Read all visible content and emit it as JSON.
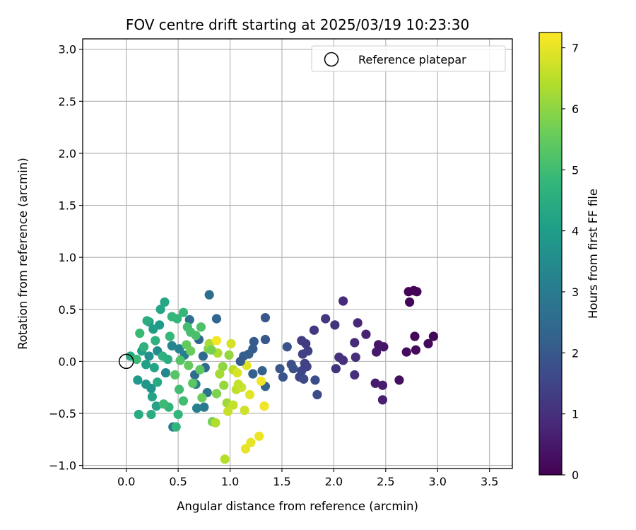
{
  "chart_data": {
    "type": "scatter",
    "title": "FOV centre drift starting at 2025/03/19 10:23:30",
    "xlabel": "Angular distance from reference (arcmin)",
    "ylabel": "Rotation from reference (arcmin)",
    "xlim": [
      -0.42,
      3.72
    ],
    "ylim": [
      -1.03,
      3.1
    ],
    "xticks": [
      0.0,
      0.5,
      1.0,
      1.5,
      2.0,
      2.5,
      3.0,
      3.5
    ],
    "xtick_labels": [
      "0.0",
      "0.5",
      "1.0",
      "1.5",
      "2.0",
      "2.5",
      "3.0",
      "3.5"
    ],
    "yticks": [
      -1.0,
      -0.5,
      0.0,
      0.5,
      1.0,
      1.5,
      2.0,
      2.5,
      3.0
    ],
    "ytick_labels": [
      "−1.0",
      "−0.5",
      "0.0",
      "0.5",
      "1.0",
      "1.5",
      "2.0",
      "2.5",
      "3.0"
    ],
    "grid": true,
    "legend": {
      "position": "top-right",
      "entries": [
        "Reference platepar"
      ]
    },
    "reference_point": {
      "x": 0.0,
      "y": 0.0,
      "marker": "open-circle"
    },
    "colorbar": {
      "label": "Hours from first FF file",
      "colormap": "viridis",
      "range": [
        0,
        7.25
      ],
      "ticks": [
        0,
        1,
        2,
        3,
        4,
        5,
        6,
        7
      ],
      "tick_labels": [
        "0",
        "1",
        "2",
        "3",
        "4",
        "5",
        "6",
        "7"
      ],
      "stops": [
        "#440154",
        "#482878",
        "#3e4a89",
        "#31688e",
        "#26828e",
        "#1f9e89",
        "#35b779",
        "#6ece58",
        "#b5de2b",
        "#fde725"
      ]
    },
    "series": [
      {
        "points": [
          {
            "x": 2.72,
            "y": 0.67,
            "c": 0.05
          },
          {
            "x": 2.77,
            "y": 0.68,
            "c": 0.05
          },
          {
            "x": 2.8,
            "y": 0.67,
            "c": 0.08
          },
          {
            "x": 2.73,
            "y": 0.57,
            "c": 0.1
          },
          {
            "x": 2.96,
            "y": 0.24,
            "c": 0.12
          },
          {
            "x": 2.78,
            "y": 0.24,
            "c": 0.14
          },
          {
            "x": 2.91,
            "y": 0.17,
            "c": 0.16
          },
          {
            "x": 2.79,
            "y": 0.11,
            "c": 0.18
          },
          {
            "x": 2.7,
            "y": 0.09,
            "c": 0.2
          },
          {
            "x": 2.63,
            "y": -0.18,
            "c": 0.3
          },
          {
            "x": 2.48,
            "y": 0.14,
            "c": 0.4
          },
          {
            "x": 2.43,
            "y": 0.16,
            "c": 0.45
          },
          {
            "x": 2.41,
            "y": 0.09,
            "c": 0.5
          },
          {
            "x": 2.4,
            "y": -0.21,
            "c": 0.55
          },
          {
            "x": 2.47,
            "y": -0.23,
            "c": 0.6
          },
          {
            "x": 2.47,
            "y": -0.37,
            "c": 0.65
          },
          {
            "x": 2.31,
            "y": 0.26,
            "c": 0.7
          },
          {
            "x": 2.23,
            "y": 0.37,
            "c": 0.8
          },
          {
            "x": 2.09,
            "y": 0.58,
            "c": 0.85
          },
          {
            "x": 2.2,
            "y": 0.18,
            "c": 0.9
          },
          {
            "x": 2.21,
            "y": 0.04,
            "c": 0.95
          },
          {
            "x": 2.2,
            "y": -0.13,
            "c": 1.0
          },
          {
            "x": 2.09,
            "y": 0.01,
            "c": 1.0
          },
          {
            "x": 2.05,
            "y": 0.04,
            "c": 1.05
          },
          {
            "x": 2.02,
            "y": -0.07,
            "c": 1.1
          },
          {
            "x": 2.01,
            "y": 0.35,
            "c": 1.1
          },
          {
            "x": 1.92,
            "y": 0.41,
            "c": 1.15
          },
          {
            "x": 1.81,
            "y": 0.3,
            "c": 1.2
          },
          {
            "x": 1.73,
            "y": 0.17,
            "c": 1.25
          },
          {
            "x": 1.69,
            "y": 0.2,
            "c": 1.3
          },
          {
            "x": 1.75,
            "y": 0.1,
            "c": 1.35
          },
          {
            "x": 1.7,
            "y": 0.07,
            "c": 1.4
          },
          {
            "x": 1.74,
            "y": -0.05,
            "c": 1.45
          },
          {
            "x": 1.69,
            "y": -0.09,
            "c": 1.5
          },
          {
            "x": 1.67,
            "y": -0.15,
            "c": 1.55
          },
          {
            "x": 1.71,
            "y": -0.17,
            "c": 1.6
          },
          {
            "x": 1.84,
            "y": -0.32,
            "c": 1.65
          },
          {
            "x": 1.82,
            "y": -0.18,
            "c": 1.7
          },
          {
            "x": 1.59,
            "y": -0.03,
            "c": 1.75
          },
          {
            "x": 1.61,
            "y": -0.07,
            "c": 1.8
          },
          {
            "x": 1.55,
            "y": 0.14,
            "c": 1.85
          },
          {
            "x": 1.51,
            "y": -0.15,
            "c": 1.9
          },
          {
            "x": 1.48,
            "y": -0.07,
            "c": 1.95
          },
          {
            "x": 1.34,
            "y": 0.42,
            "c": 2.0
          },
          {
            "x": 1.34,
            "y": 0.21,
            "c": 2.0
          },
          {
            "x": 1.23,
            "y": 0.19,
            "c": 2.05
          },
          {
            "x": 1.22,
            "y": 0.12,
            "c": 2.1
          },
          {
            "x": 1.18,
            "y": 0.07,
            "c": 2.15
          },
          {
            "x": 1.13,
            "y": 0.05,
            "c": 2.2
          },
          {
            "x": 1.31,
            "y": -0.09,
            "c": 2.25
          },
          {
            "x": 1.34,
            "y": -0.24,
            "c": 2.3
          },
          {
            "x": 0.87,
            "y": 0.41,
            "c": 2.35
          },
          {
            "x": 0.7,
            "y": 0.21,
            "c": 2.4
          },
          {
            "x": 0.74,
            "y": 0.05,
            "c": 2.45
          },
          {
            "x": 0.76,
            "y": -0.06,
            "c": 2.5
          },
          {
            "x": 0.66,
            "y": -0.13,
            "c": 2.55
          },
          {
            "x": 0.8,
            "y": 0.64,
            "c": 2.6
          },
          {
            "x": 0.61,
            "y": 0.4,
            "c": 2.7
          },
          {
            "x": 0.78,
            "y": -0.3,
            "c": 2.8
          },
          {
            "x": 0.75,
            "y": -0.44,
            "c": 2.9
          },
          {
            "x": 0.67,
            "y": -0.22,
            "c": 3.0
          },
          {
            "x": 0.45,
            "y": -0.63,
            "c": 3.0
          },
          {
            "x": 0.56,
            "y": 0.06,
            "c": 3.1
          },
          {
            "x": 0.51,
            "y": 0.12,
            "c": 3.2
          },
          {
            "x": 0.44,
            "y": 0.15,
            "c": 3.3
          },
          {
            "x": 0.38,
            "y": -0.11,
            "c": 3.4
          },
          {
            "x": 0.3,
            "y": 0.1,
            "c": 3.5
          },
          {
            "x": 0.22,
            "y": 0.05,
            "c": 3.6
          },
          {
            "x": 0.24,
            "y": -0.26,
            "c": 3.7
          },
          {
            "x": 0.19,
            "y": -0.22,
            "c": 3.8
          },
          {
            "x": 0.11,
            "y": -0.18,
            "c": 3.9
          },
          {
            "x": 0.32,
            "y": 0.35,
            "c": 3.9
          },
          {
            "x": 0.22,
            "y": 0.38,
            "c": 4.0
          },
          {
            "x": 0.26,
            "y": 0.31,
            "c": 4.0
          },
          {
            "x": 0.15,
            "y": 0.1,
            "c": 4.1
          },
          {
            "x": 0.19,
            "y": -0.03,
            "c": 4.1
          },
          {
            "x": 0.25,
            "y": -0.34,
            "c": 4.2
          },
          {
            "x": 0.29,
            "y": -0.43,
            "c": 4.2
          },
          {
            "x": 0.37,
            "y": 0.57,
            "c": 4.3
          },
          {
            "x": 0.33,
            "y": 0.5,
            "c": 4.3
          },
          {
            "x": 0.04,
            "y": 0.05,
            "c": 4.4
          },
          {
            "x": 0.12,
            "y": -0.51,
            "c": 4.4
          },
          {
            "x": 0.24,
            "y": -0.51,
            "c": 4.5
          },
          {
            "x": 0.2,
            "y": 0.39,
            "c": 4.5
          },
          {
            "x": 0.28,
            "y": 0.2,
            "c": 4.6
          },
          {
            "x": 0.35,
            "y": 0.05,
            "c": 4.6
          },
          {
            "x": 0.41,
            "y": -0.44,
            "c": 4.7
          },
          {
            "x": 0.48,
            "y": -0.63,
            "c": 4.7
          },
          {
            "x": 0.5,
            "y": -0.51,
            "c": 4.75
          },
          {
            "x": 0.44,
            "y": 0.43,
            "c": 4.8
          },
          {
            "x": 0.49,
            "y": 0.41,
            "c": 4.8
          },
          {
            "x": 0.55,
            "y": 0.47,
            "c": 4.85
          },
          {
            "x": 0.42,
            "y": 0.24,
            "c": 4.85
          },
          {
            "x": 0.13,
            "y": 0.27,
            "c": 4.9
          },
          {
            "x": 0.1,
            "y": 0.02,
            "c": 4.9
          },
          {
            "x": 0.36,
            "y": -0.41,
            "c": 4.95
          },
          {
            "x": 0.51,
            "y": -0.27,
            "c": 5.0
          },
          {
            "x": 0.55,
            "y": -0.38,
            "c": 5.0
          },
          {
            "x": 0.59,
            "y": 0.33,
            "c": 5.05
          },
          {
            "x": 0.62,
            "y": 0.28,
            "c": 5.1
          },
          {
            "x": 0.67,
            "y": 0.25,
            "c": 5.15
          },
          {
            "x": 0.72,
            "y": 0.33,
            "c": 5.2
          },
          {
            "x": 0.52,
            "y": 0.01,
            "c": 5.25
          },
          {
            "x": 0.47,
            "y": -0.13,
            "c": 5.3
          },
          {
            "x": 0.64,
            "y": -0.21,
            "c": 5.35
          },
          {
            "x": 0.71,
            "y": -0.08,
            "c": 5.4
          },
          {
            "x": 0.6,
            "y": -0.04,
            "c": 5.5
          },
          {
            "x": 0.73,
            "y": -0.35,
            "c": 5.6
          },
          {
            "x": 0.83,
            "y": -0.58,
            "c": 5.7
          },
          {
            "x": 0.87,
            "y": -0.31,
            "c": 5.8
          },
          {
            "x": 0.79,
            "y": 0.12,
            "c": 5.9
          },
          {
            "x": 0.93,
            "y": -0.05,
            "c": 6.0
          },
          {
            "x": 0.99,
            "y": 0.06,
            "c": 6.05
          },
          {
            "x": 0.94,
            "y": -0.23,
            "c": 6.1
          },
          {
            "x": 0.97,
            "y": -0.4,
            "c": 6.2
          },
          {
            "x": 0.8,
            "y": 0.17,
            "c": 6.3
          },
          {
            "x": 0.88,
            "y": 0.08,
            "c": 6.35
          },
          {
            "x": 0.86,
            "y": -0.59,
            "c": 6.4
          },
          {
            "x": 0.95,
            "y": -0.94,
            "c": 6.45
          },
          {
            "x": 1.03,
            "y": -0.08,
            "c": 6.5
          },
          {
            "x": 1.06,
            "y": -0.27,
            "c": 6.55
          },
          {
            "x": 1.03,
            "y": -0.42,
            "c": 6.6
          },
          {
            "x": 0.98,
            "y": -0.48,
            "c": 6.65
          },
          {
            "x": 1.11,
            "y": -0.25,
            "c": 6.7
          },
          {
            "x": 1.14,
            "y": -0.47,
            "c": 6.75
          },
          {
            "x": 1.01,
            "y": 0.17,
            "c": 6.8
          },
          {
            "x": 1.07,
            "y": -0.11,
            "c": 6.85
          },
          {
            "x": 1.16,
            "y": -0.04,
            "c": 6.9
          },
          {
            "x": 1.19,
            "y": -0.32,
            "c": 6.95
          },
          {
            "x": 1.2,
            "y": -0.78,
            "c": 7.0
          },
          {
            "x": 1.15,
            "y": -0.84,
            "c": 7.0
          },
          {
            "x": 1.28,
            "y": -0.72,
            "c": 7.05
          },
          {
            "x": 1.33,
            "y": -0.43,
            "c": 7.1
          },
          {
            "x": 1.3,
            "y": -0.19,
            "c": 7.1
          },
          {
            "x": 0.87,
            "y": 0.2,
            "c": 7.15
          },
          {
            "x": 0.82,
            "y": 0.11,
            "c": 5.75
          },
          {
            "x": 0.9,
            "y": -0.12,
            "c": 6.25
          },
          {
            "x": 0.58,
            "y": 0.16,
            "c": 5.45
          },
          {
            "x": 0.4,
            "y": 0.02,
            "c": 4.55
          },
          {
            "x": 0.3,
            "y": -0.2,
            "c": 4.35
          },
          {
            "x": 0.17,
            "y": 0.14,
            "c": 4.65
          },
          {
            "x": 0.27,
            "y": -0.06,
            "c": 4.25
          },
          {
            "x": 0.62,
            "y": 0.1,
            "c": 5.55
          },
          {
            "x": 0.68,
            "y": -0.45,
            "c": 3.15
          },
          {
            "x": 1.1,
            "y": 0.0,
            "c": 2.1
          },
          {
            "x": 1.08,
            "y": -0.22,
            "c": 6.6
          },
          {
            "x": 1.22,
            "y": -0.12,
            "c": 2.2
          },
          {
            "x": 1.72,
            "y": -0.02,
            "c": 1.4
          }
        ]
      }
    ]
  }
}
